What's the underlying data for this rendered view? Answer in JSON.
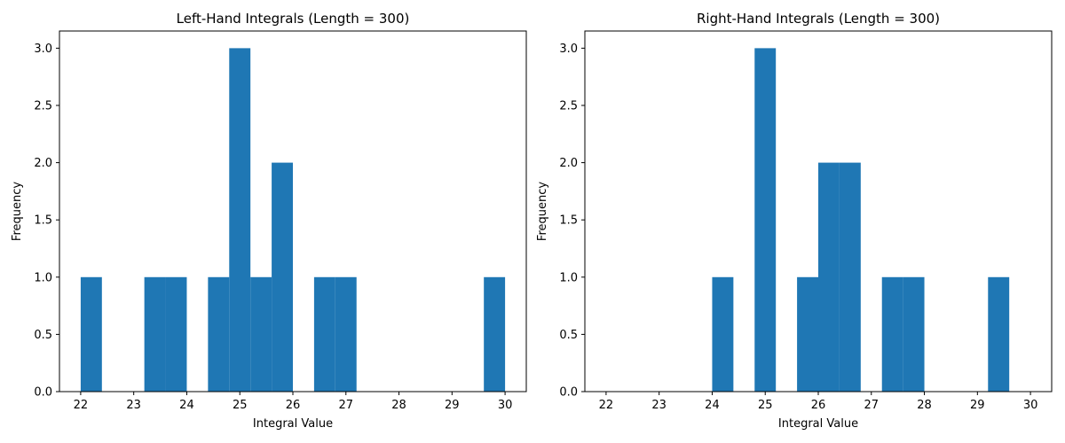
{
  "chart_data": [
    {
      "type": "bar",
      "title": "Left-Hand Integrals (Length = 300)",
      "xlabel": "Integral Value",
      "ylabel": "Frequency",
      "xlim": [
        21.6,
        30.4
      ],
      "ylim": [
        0,
        3.15
      ],
      "x_ticks": [
        "22",
        "23",
        "24",
        "25",
        "26",
        "27",
        "28",
        "29",
        "30"
      ],
      "y_ticks": [
        "0.0",
        "0.5",
        "1.0",
        "1.5",
        "2.0",
        "2.5",
        "3.0"
      ],
      "bar_color": "#1f77b4",
      "bins": [
        {
          "x0": 22.0,
          "x1": 22.4,
          "count": 1
        },
        {
          "x0": 23.2,
          "x1": 23.6,
          "count": 1
        },
        {
          "x0": 23.6,
          "x1": 24.0,
          "count": 1
        },
        {
          "x0": 24.4,
          "x1": 24.8,
          "count": 1
        },
        {
          "x0": 24.8,
          "x1": 25.2,
          "count": 3
        },
        {
          "x0": 25.2,
          "x1": 25.6,
          "count": 1
        },
        {
          "x0": 25.6,
          "x1": 26.0,
          "count": 2
        },
        {
          "x0": 26.4,
          "x1": 26.8,
          "count": 1
        },
        {
          "x0": 26.8,
          "x1": 27.2,
          "count": 1
        },
        {
          "x0": 29.6,
          "x1": 30.0,
          "count": 1
        }
      ]
    },
    {
      "type": "bar",
      "title": "Right-Hand Integrals (Length = 300)",
      "xlabel": "Integral Value",
      "ylabel": "Frequency",
      "xlim": [
        21.6,
        30.4
      ],
      "ylim": [
        0,
        3.15
      ],
      "x_ticks": [
        "22",
        "23",
        "24",
        "25",
        "26",
        "27",
        "28",
        "29",
        "30"
      ],
      "y_ticks": [
        "0.0",
        "0.5",
        "1.0",
        "1.5",
        "2.0",
        "2.5",
        "3.0"
      ],
      "bar_color": "#1f77b4",
      "bins": [
        {
          "x0": 24.0,
          "x1": 24.4,
          "count": 1
        },
        {
          "x0": 24.8,
          "x1": 25.2,
          "count": 3
        },
        {
          "x0": 25.6,
          "x1": 26.0,
          "count": 1
        },
        {
          "x0": 26.0,
          "x1": 26.4,
          "count": 2
        },
        {
          "x0": 26.4,
          "x1": 26.8,
          "count": 2
        },
        {
          "x0": 27.2,
          "x1": 27.6,
          "count": 1
        },
        {
          "x0": 27.6,
          "x1": 28.0,
          "count": 1
        },
        {
          "x0": 29.2,
          "x1": 29.6,
          "count": 1
        }
      ]
    }
  ]
}
